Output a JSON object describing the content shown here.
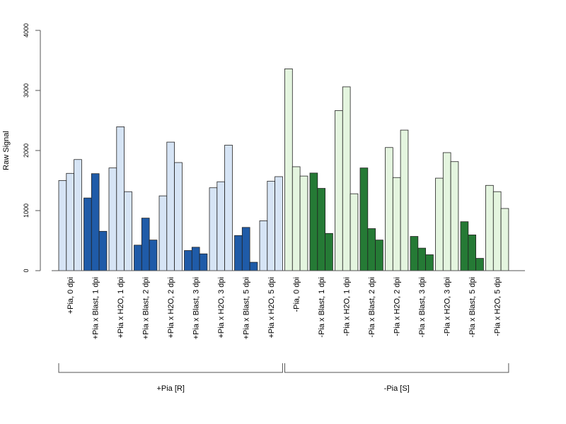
{
  "chart_data": {
    "type": "bar",
    "title": "",
    "xlabel": "",
    "ylabel": "Raw Signal",
    "ylim": [
      0,
      4000
    ],
    "yticks": [
      0,
      1000,
      2000,
      3000,
      4000
    ],
    "grid": false,
    "legend": "none",
    "colors": {
      "light_blue": "#d6e4f5",
      "dark_blue": "#1f5ba8",
      "light_green": "#e4f5df",
      "dark_green": "#257a35",
      "outline": "#222222",
      "axis": "#555555"
    },
    "categories": [
      {
        "label": "+Pia, 0 dpi",
        "values": [
          1500,
          1620,
          1850
        ],
        "color": "light_blue"
      },
      {
        "label": "+Pia x Blast, 1 dpi",
        "values": [
          1210,
          1615,
          655
        ],
        "color": "dark_blue"
      },
      {
        "label": "+Pia x H2O, 1 dpi",
        "values": [
          1710,
          2395,
          1315
        ],
        "color": "light_blue"
      },
      {
        "label": "+Pia x Blast, 2 dpi",
        "values": [
          425,
          875,
          510
        ],
        "color": "dark_blue"
      },
      {
        "label": "+Pia x H2O, 2 dpi",
        "values": [
          1245,
          2140,
          1800
        ],
        "color": "light_blue"
      },
      {
        "label": "+Pia x Blast, 3 dpi",
        "values": [
          335,
          390,
          280
        ],
        "color": "dark_blue"
      },
      {
        "label": "+Pia x H2O, 3 dpi",
        "values": [
          1380,
          1480,
          2090
        ],
        "color": "light_blue"
      },
      {
        "label": "+Pia x Blast, 5 dpi",
        "values": [
          585,
          720,
          140
        ],
        "color": "dark_blue"
      },
      {
        "label": "+Pia x H2O, 5 dpi",
        "values": [
          830,
          1490,
          1565
        ],
        "color": "light_blue"
      },
      {
        "label": "-Pia, 0 dpi",
        "values": [
          3360,
          1730,
          1575
        ],
        "color": "light_green"
      },
      {
        "label": "-Pia x Blast, 1 dpi",
        "values": [
          1625,
          1370,
          620
        ],
        "color": "dark_green"
      },
      {
        "label": "-Pia x H2O, 1 dpi",
        "values": [
          2665,
          3060,
          1280
        ],
        "color": "light_green"
      },
      {
        "label": "-Pia x Blast, 2 dpi",
        "values": [
          1710,
          700,
          510
        ],
        "color": "dark_green"
      },
      {
        "label": "-Pia x H2O, 2 dpi",
        "values": [
          2050,
          1550,
          2340
        ],
        "color": "light_green"
      },
      {
        "label": "-Pia x Blast, 3 dpi",
        "values": [
          570,
          375,
          265
        ],
        "color": "dark_green"
      },
      {
        "label": "-Pia x H2O, 3 dpi",
        "values": [
          1540,
          1965,
          1815
        ],
        "color": "light_green"
      },
      {
        "label": "-Pia x Blast, 5 dpi",
        "values": [
          815,
          595,
          205
        ],
        "color": "dark_green"
      },
      {
        "label": "-Pia x H2O, 5 dpi",
        "values": [
          1420,
          1315,
          1035
        ],
        "color": "light_green"
      }
    ],
    "groups": [
      {
        "label": "+Pia [R]",
        "from": 0,
        "to": 8
      },
      {
        "label": "-Pia [S]",
        "from": 9,
        "to": 17
      }
    ]
  }
}
